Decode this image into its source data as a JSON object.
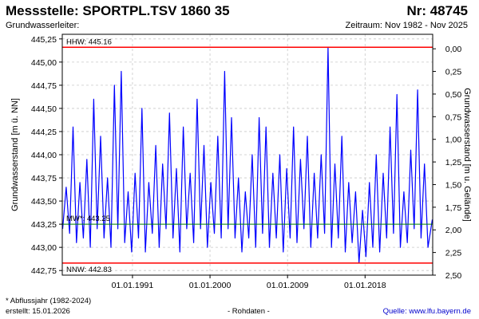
{
  "header": {
    "title": "Messstelle: SPORTPL.TSV 1860 35",
    "number": "Nr: 48745",
    "aquifer": "Grundwasserleiter:",
    "period": "Zeitraum: Nov 1982 - Nov 2025"
  },
  "footer": {
    "footnote": "* Abflussjahr (1982-2024)",
    "created": "erstellt:  15.01.2026",
    "data_kind": "- Rohdaten -",
    "source": "Quelle:  www.lfu.bayern.de"
  },
  "colors": {
    "series": "#0000ff",
    "reference": "#ff0000",
    "mean": "#008000",
    "grid": "#c8c8c8"
  },
  "chart_data": {
    "type": "line",
    "ylabel_left": "Grundwasserstand [m ü. NN]",
    "ylabel_right": "Grundwasserstand [m u. Gelände]",
    "xlim": [
      1982.85,
      2025.85
    ],
    "ylim_left": [
      442.7,
      445.3
    ],
    "ylim_right": [
      2.5,
      -0.16
    ],
    "left_ticks": [
      "445,25",
      "445,00",
      "444,75",
      "444,50",
      "444,25",
      "444,00",
      "443,75",
      "443,50",
      "443,25",
      "443,00",
      "442,75"
    ],
    "right_ticks": [
      "0,00",
      "0,25",
      "0,50",
      "0,75",
      "1,00",
      "1,25",
      "1,50",
      "1,75",
      "2,00",
      "2,25",
      "2,50"
    ],
    "x_ticks": [
      {
        "label": "01.01.1991",
        "year": 1991.0
      },
      {
        "label": "01.01.2000",
        "year": 2000.0
      },
      {
        "label": "01.01.2009",
        "year": 2009.0
      },
      {
        "label": "01.01.2018",
        "year": 2018.0
      }
    ],
    "grid": true,
    "reference_lines": [
      {
        "name": "HHW",
        "label": "HHW: 445.16",
        "value": 445.16,
        "kind": "max"
      },
      {
        "name": "NNW",
        "label": "NNW: 442.83",
        "value": 442.83,
        "kind": "min"
      },
      {
        "name": "MW",
        "label": "MW*: 443.25",
        "value": 443.25,
        "kind": "mean"
      }
    ],
    "series": [
      {
        "values": [
          [
            1982.9,
            443.2
          ],
          [
            1983.3,
            443.65
          ],
          [
            1983.7,
            443.15
          ],
          [
            1984.1,
            444.3
          ],
          [
            1984.5,
            443.05
          ],
          [
            1984.9,
            443.7
          ],
          [
            1985.3,
            443.1
          ],
          [
            1985.7,
            443.95
          ],
          [
            1986.1,
            443.0
          ],
          [
            1986.5,
            444.6
          ],
          [
            1986.9,
            443.2
          ],
          [
            1987.3,
            444.2
          ],
          [
            1987.7,
            443.1
          ],
          [
            1988.1,
            443.75
          ],
          [
            1988.5,
            443.0
          ],
          [
            1988.9,
            444.75
          ],
          [
            1989.3,
            443.2
          ],
          [
            1989.7,
            444.9
          ],
          [
            1990.1,
            443.05
          ],
          [
            1990.5,
            443.6
          ],
          [
            1990.9,
            442.95
          ],
          [
            1991.3,
            443.8
          ],
          [
            1991.7,
            443.1
          ],
          [
            1992.1,
            444.5
          ],
          [
            1992.5,
            442.95
          ],
          [
            1992.9,
            443.7
          ],
          [
            1993.3,
            443.15
          ],
          [
            1993.7,
            444.1
          ],
          [
            1994.1,
            443.0
          ],
          [
            1994.5,
            443.9
          ],
          [
            1994.9,
            443.2
          ],
          [
            1995.3,
            444.45
          ],
          [
            1995.7,
            443.1
          ],
          [
            1996.1,
            443.85
          ],
          [
            1996.5,
            442.95
          ],
          [
            1996.9,
            444.3
          ],
          [
            1997.3,
            443.2
          ],
          [
            1997.7,
            443.8
          ],
          [
            1998.1,
            443.05
          ],
          [
            1998.5,
            444.6
          ],
          [
            1998.9,
            443.2
          ],
          [
            1999.3,
            444.1
          ],
          [
            1999.7,
            443.0
          ],
          [
            2000.1,
            443.7
          ],
          [
            2000.5,
            443.15
          ],
          [
            2000.9,
            444.2
          ],
          [
            2001.3,
            443.1
          ],
          [
            2001.7,
            444.9
          ],
          [
            2002.1,
            443.2
          ],
          [
            2002.5,
            444.4
          ],
          [
            2002.9,
            443.1
          ],
          [
            2003.3,
            443.75
          ],
          [
            2003.7,
            442.95
          ],
          [
            2004.1,
            443.6
          ],
          [
            2004.5,
            443.1
          ],
          [
            2004.9,
            444.0
          ],
          [
            2005.3,
            443.0
          ],
          [
            2005.7,
            444.4
          ],
          [
            2006.1,
            443.15
          ],
          [
            2006.5,
            444.3
          ],
          [
            2006.9,
            443.0
          ],
          [
            2007.3,
            443.8
          ],
          [
            2007.7,
            443.1
          ],
          [
            2008.1,
            444.0
          ],
          [
            2008.5,
            442.95
          ],
          [
            2008.9,
            443.85
          ],
          [
            2009.3,
            443.1
          ],
          [
            2009.7,
            444.3
          ],
          [
            2010.1,
            443.05
          ],
          [
            2010.5,
            443.95
          ],
          [
            2010.9,
            443.2
          ],
          [
            2011.3,
            444.2
          ],
          [
            2011.7,
            443.0
          ],
          [
            2012.1,
            443.8
          ],
          [
            2012.5,
            443.1
          ],
          [
            2012.9,
            444.0
          ],
          [
            2013.3,
            443.15
          ],
          [
            2013.7,
            445.16
          ],
          [
            2014.1,
            443.0
          ],
          [
            2014.5,
            443.9
          ],
          [
            2014.9,
            443.1
          ],
          [
            2015.3,
            444.2
          ],
          [
            2015.7,
            442.95
          ],
          [
            2016.1,
            443.7
          ],
          [
            2016.5,
            443.05
          ],
          [
            2016.9,
            443.6
          ],
          [
            2017.3,
            442.83
          ],
          [
            2017.7,
            443.4
          ],
          [
            2018.1,
            442.9
          ],
          [
            2018.5,
            443.7
          ],
          [
            2018.9,
            443.0
          ],
          [
            2019.3,
            444.0
          ],
          [
            2019.7,
            442.95
          ],
          [
            2020.1,
            443.8
          ],
          [
            2020.5,
            443.1
          ],
          [
            2020.9,
            444.3
          ],
          [
            2021.3,
            443.15
          ],
          [
            2021.7,
            444.65
          ],
          [
            2022.1,
            443.0
          ],
          [
            2022.5,
            443.6
          ],
          [
            2022.9,
            443.05
          ],
          [
            2023.3,
            444.05
          ],
          [
            2023.7,
            443.2
          ],
          [
            2024.1,
            444.7
          ],
          [
            2024.5,
            443.1
          ],
          [
            2024.9,
            443.9
          ],
          [
            2025.3,
            443.0
          ],
          [
            2025.8,
            443.3
          ]
        ]
      }
    ]
  }
}
